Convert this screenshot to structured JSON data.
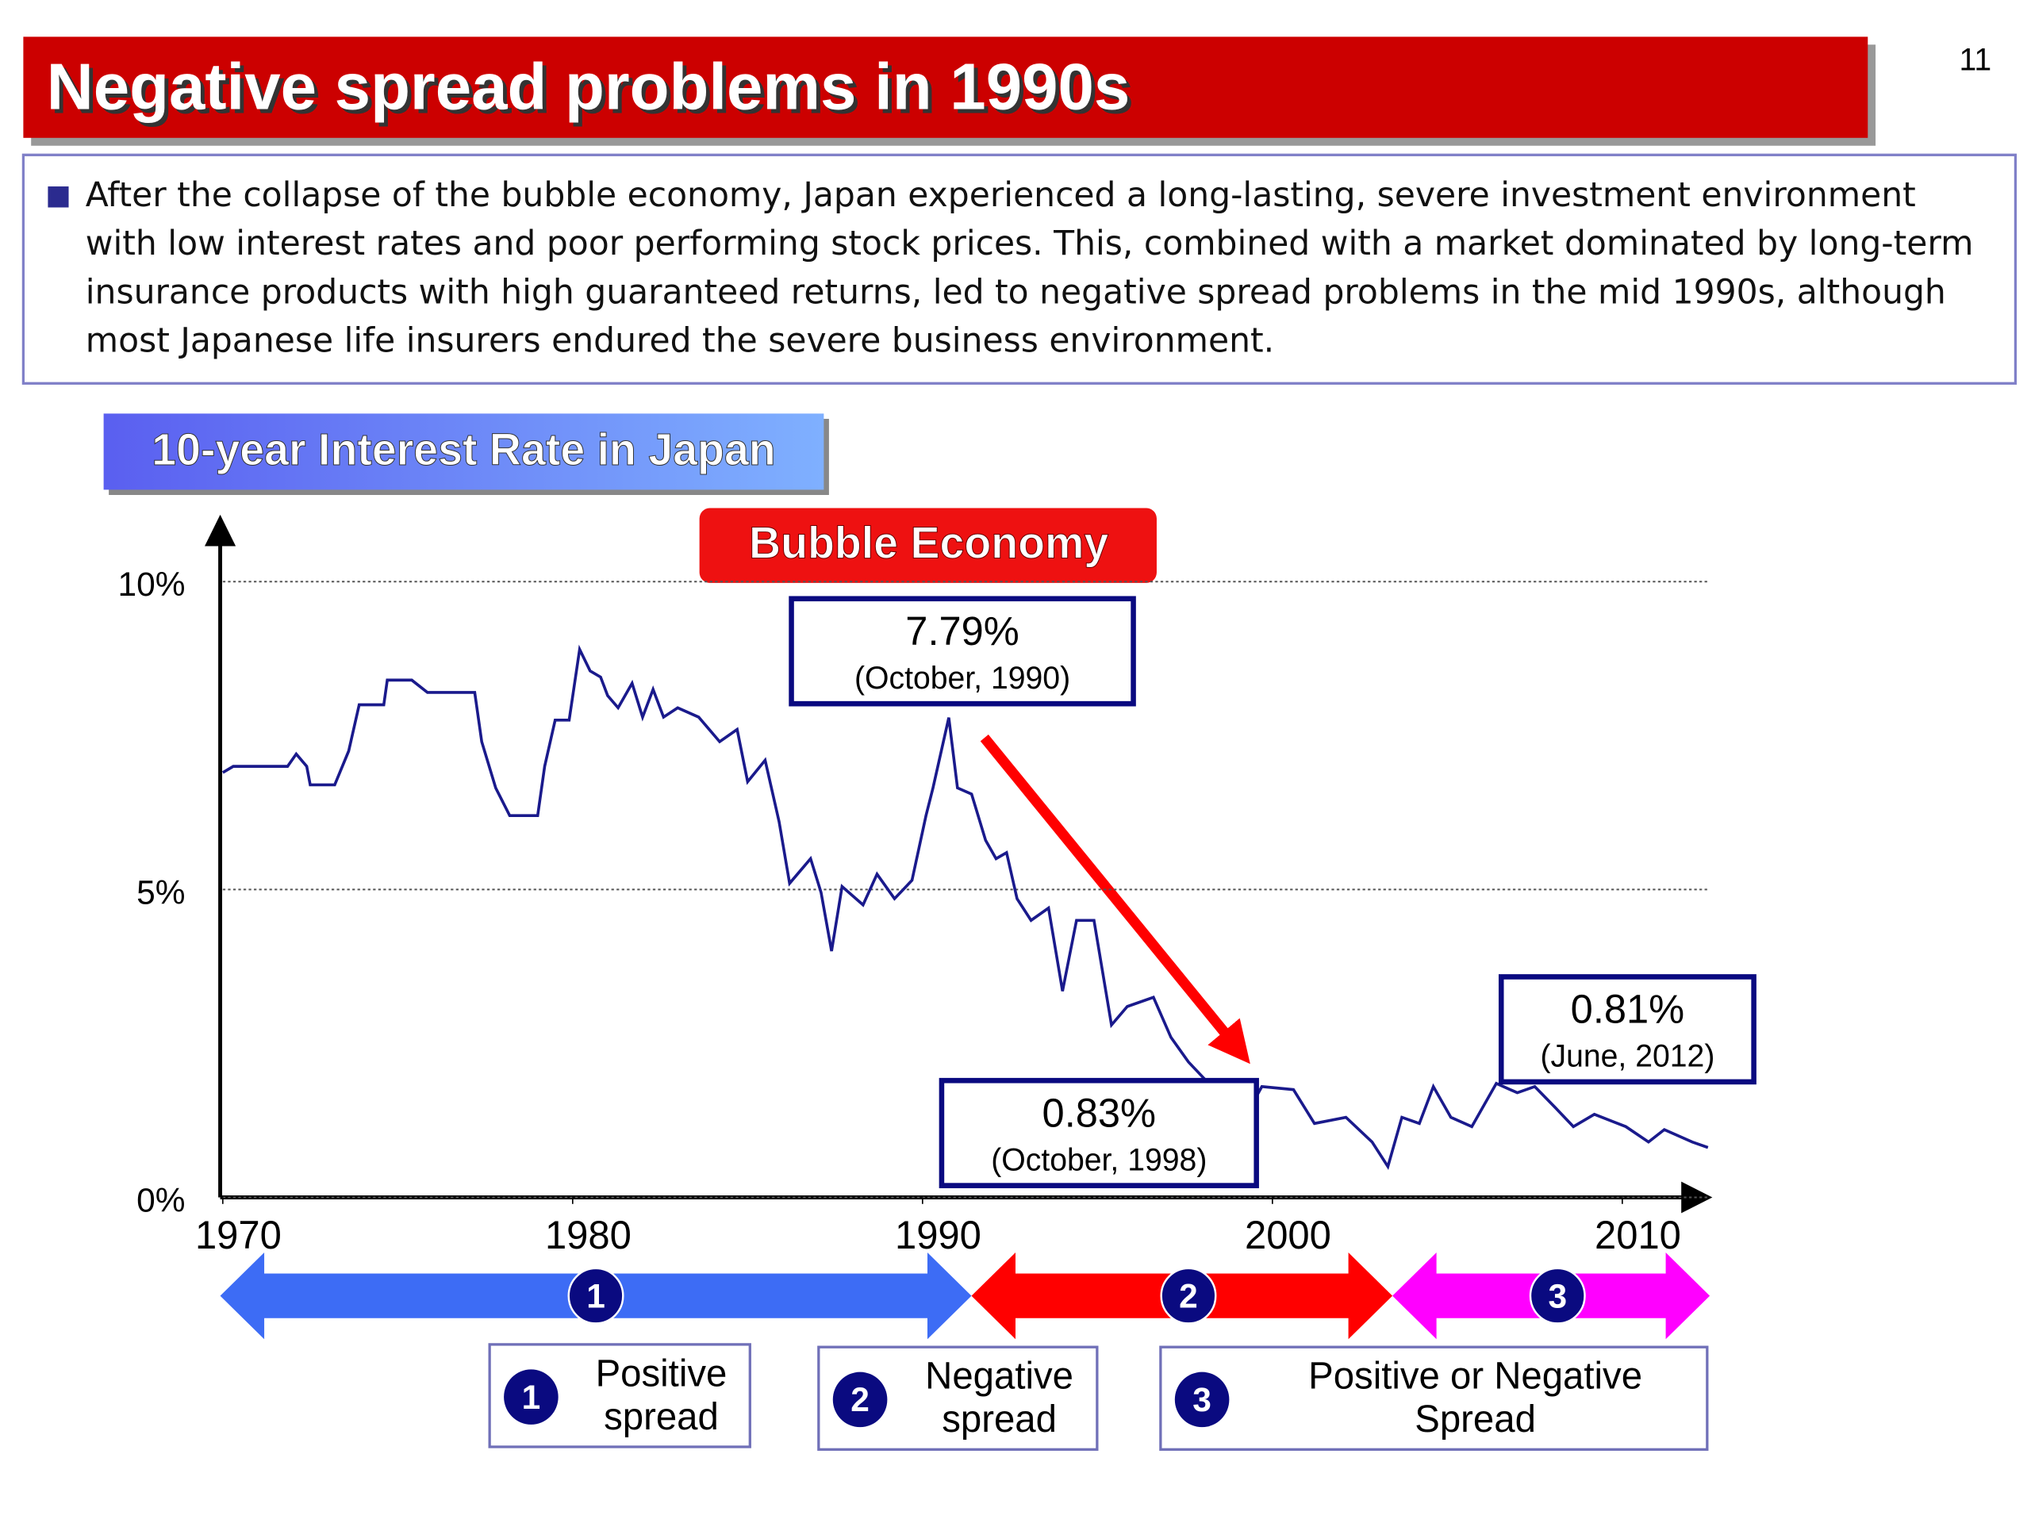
{
  "page_number": 11,
  "title": "Negative spread problems in 1990s",
  "bullet": "After the collapse of the bubble economy, Japan experienced a long-lasting, severe investment environment with low interest rates and poor performing stock prices. This, combined with a market dominated by long-term insurance products with high guaranteed returns, led to negative spread problems in the mid 1990s, although most Japanese life insurers endured the severe business environment.",
  "chart_data": {
    "type": "line",
    "title": "10-year Interest Rate in Japan",
    "highlight": "Bubble Economy",
    "x": [
      1970.0,
      1970.3,
      1971.85,
      1972.1,
      1972.4,
      1972.5,
      1973.2,
      1973.6,
      1973.9,
      1974.6,
      1974.7,
      1975.4,
      1975.85,
      1977.2,
      1977.4,
      1977.8,
      1978.2,
      1979.0,
      1979.2,
      1979.5,
      1979.9,
      1980.2,
      1980.5,
      1980.8,
      1981.0,
      1981.3,
      1981.7,
      1982.0,
      1982.3,
      1982.6,
      1983.0,
      1983.6,
      1984.2,
      1984.7,
      1985.0,
      1985.5,
      1985.9,
      1986.2,
      1986.8,
      1987.1,
      1987.4,
      1987.7,
      1988.3,
      1988.7,
      1989.2,
      1989.7,
      1990.1,
      1990.3,
      1990.75,
      1991.0,
      1991.4,
      1991.8,
      1992.1,
      1992.4,
      1992.7,
      1993.1,
      1993.6,
      1994.0,
      1994.4,
      1994.9,
      1995.4,
      1995.85,
      1996.6,
      1997.1,
      1997.6,
      1998.1,
      1998.75,
      1999.7,
      2000.6,
      2001.2,
      2002.1,
      2002.85,
      2003.3,
      2003.7,
      2004.2,
      2004.6,
      2005.1,
      2005.7,
      2006.4,
      2007.0,
      2007.5,
      2008.1,
      2008.6,
      2009.2,
      2010.1,
      2010.75,
      2011.2,
      2012.0,
      2012.45
    ],
    "values": [
      6.9,
      7.0,
      7.0,
      7.2,
      7.0,
      6.7,
      6.7,
      7.25,
      8.0,
      8.0,
      8.4,
      8.4,
      8.2,
      8.2,
      7.4,
      6.65,
      6.2,
      6.2,
      7.0,
      7.75,
      7.75,
      8.9,
      8.55,
      8.45,
      8.15,
      7.95,
      8.35,
      7.8,
      8.25,
      7.8,
      7.95,
      7.8,
      7.4,
      7.6,
      6.75,
      7.1,
      6.1,
      5.1,
      5.5,
      4.95,
      4.0,
      5.05,
      4.75,
      5.25,
      4.85,
      5.15,
      6.2,
      6.65,
      7.79,
      6.65,
      6.55,
      5.8,
      5.5,
      5.6,
      4.85,
      4.5,
      4.7,
      3.35,
      4.5,
      4.5,
      2.8,
      3.1,
      3.25,
      2.6,
      2.2,
      1.9,
      0.83,
      1.8,
      1.75,
      1.2,
      1.3,
      0.9,
      0.5,
      1.3,
      1.2,
      1.8,
      1.3,
      1.15,
      1.85,
      1.7,
      1.8,
      1.45,
      1.15,
      1.35,
      1.15,
      0.9,
      1.1,
      0.9,
      0.81
    ],
    "color": "#1a1a8c",
    "xlim": [
      1970,
      2012.5
    ],
    "ylim": [
      0,
      10
    ],
    "xticks": [
      1970,
      1980,
      1990,
      2000,
      2010
    ],
    "yticks": [
      {
        "value": 0,
        "label": "0%"
      },
      {
        "value": 5,
        "label": "5%"
      },
      {
        "value": 10,
        "label": "10%"
      }
    ],
    "grid": true,
    "annotations": [
      {
        "value": "7.79%",
        "date": "(October, 1990)"
      },
      {
        "value": "0.83%",
        "date": "(October, 1998)"
      },
      {
        "value": "0.81%",
        "date": "(June, 2012)"
      }
    ],
    "periods": [
      {
        "number": 1,
        "label": [
          "Positive",
          "spread"
        ],
        "color": "#3d6cf5"
      },
      {
        "number": 2,
        "label": [
          "Negative",
          "spread"
        ],
        "color": "#ff0000"
      },
      {
        "number": 3,
        "label": [
          "Positive or Negative",
          "Spread"
        ],
        "color": "#ff00ff"
      }
    ]
  }
}
